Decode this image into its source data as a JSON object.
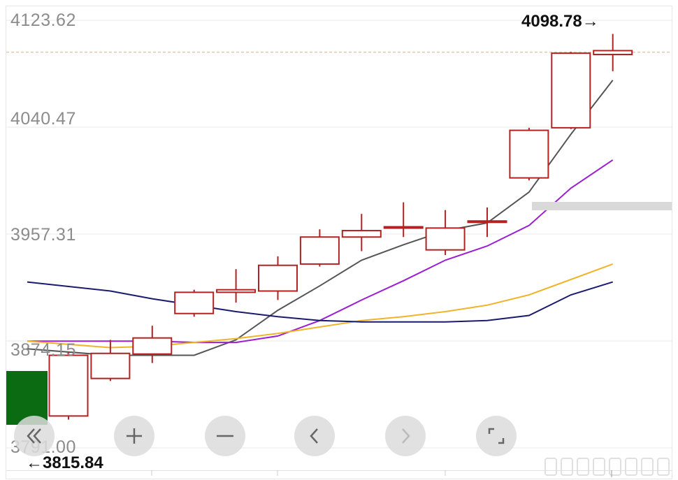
{
  "price_axis": {
    "labels": [
      "4123.62",
      "4040.47",
      "3957.31",
      "3874.15",
      "3791.00"
    ]
  },
  "annotations": {
    "high_label": "4098.78→",
    "low_label": "←3815.84"
  },
  "toolbar": {
    "buttons": [
      {
        "name": "scroll-left-button",
        "icon": "double-chevron-left-icon"
      },
      {
        "name": "zoom-in-button",
        "icon": "plus-icon"
      },
      {
        "name": "zoom-out-button",
        "icon": "minus-icon"
      },
      {
        "name": "prev-button",
        "icon": "chevron-left-icon"
      },
      {
        "name": "next-button",
        "icon": "chevron-right-icon"
      },
      {
        "name": "fullscreen-button",
        "icon": "fullscreen-icon"
      }
    ]
  },
  "colors": {
    "candle_up": "#b22222",
    "ma_gray": "#555555",
    "ma_purple": "#9b1fd1",
    "ma_orange": "#f0b429",
    "ma_navy": "#1a1a6e",
    "grid": "#e8e8e8",
    "ref_dash": "#d4b48a",
    "volume_down": "#0a6b12"
  },
  "chart_data": {
    "type": "candlestick",
    "ylim": [
      3791.0,
      4123.62
    ],
    "y_ticks": [
      3791.0,
      3874.15,
      3957.31,
      4040.47,
      4123.62
    ],
    "reference_line": 4098.78,
    "high_mark": 4098.78,
    "low_mark": 3815.84,
    "candles": [
      {
        "open": 3815.8,
        "close": 3863.0,
        "high": 3866.0,
        "low": 3813.0
      },
      {
        "open": 3845.0,
        "close": 3864.5,
        "high": 3875.0,
        "low": 3843.0
      },
      {
        "open": 3876.5,
        "close": 3864.0,
        "high": 3886.0,
        "low": 3857.0
      },
      {
        "open": 3895.5,
        "close": 3912.0,
        "high": 3914.0,
        "low": 3893.0
      },
      {
        "open": 3912.0,
        "close": 3914.0,
        "high": 3930.0,
        "low": 3904.0
      },
      {
        "open": 3913.0,
        "close": 3933.0,
        "high": 3940.0,
        "low": 3906.0
      },
      {
        "open": 3934.0,
        "close": 3955.0,
        "high": 3961.0,
        "low": 3932.0
      },
      {
        "open": 3955.0,
        "close": 3960.0,
        "high": 3973.0,
        "low": 3944.0
      },
      {
        "open": 3963.0,
        "close": 3962.0,
        "high": 3982.0,
        "low": 3955.0
      },
      {
        "open": 3945.0,
        "close": 3962.0,
        "high": 3976.0,
        "low": 3941.0
      },
      {
        "open": 3966.5,
        "close": 3967.5,
        "high": 3978.0,
        "low": 3955.0
      },
      {
        "open": 4001.0,
        "close": 4038.0,
        "high": 4040.0,
        "low": 3999.0
      },
      {
        "open": 4040.0,
        "close": 4098.0,
        "high": 4099.0,
        "low": 4039.0
      },
      {
        "open": 4097.0,
        "close": 4100.0,
        "high": 4113.0,
        "low": 4084.0
      }
    ],
    "series": [
      {
        "values": [
          3868,
          3863,
          3863,
          3863,
          3875,
          3898,
          3917,
          3937,
          3949,
          3960,
          3966,
          3990,
          4035,
          4077
        ]
      },
      {
        "values": [
          3874,
          3874,
          3874,
          3873,
          3873,
          3878,
          3890,
          3906,
          3921,
          3937,
          3948,
          3964,
          3993,
          4015
        ]
      },
      {
        "values": [
          3874,
          3869,
          3870,
          3873,
          3876,
          3880,
          3885,
          3890,
          3893,
          3897,
          3902,
          3910,
          3922,
          3934
        ]
      },
      {
        "values": [
          3920,
          3913,
          3907,
          3902,
          3897,
          3893,
          3890,
          3889,
          3889,
          3889,
          3890,
          3894,
          3910,
          3920
        ]
      }
    ]
  }
}
